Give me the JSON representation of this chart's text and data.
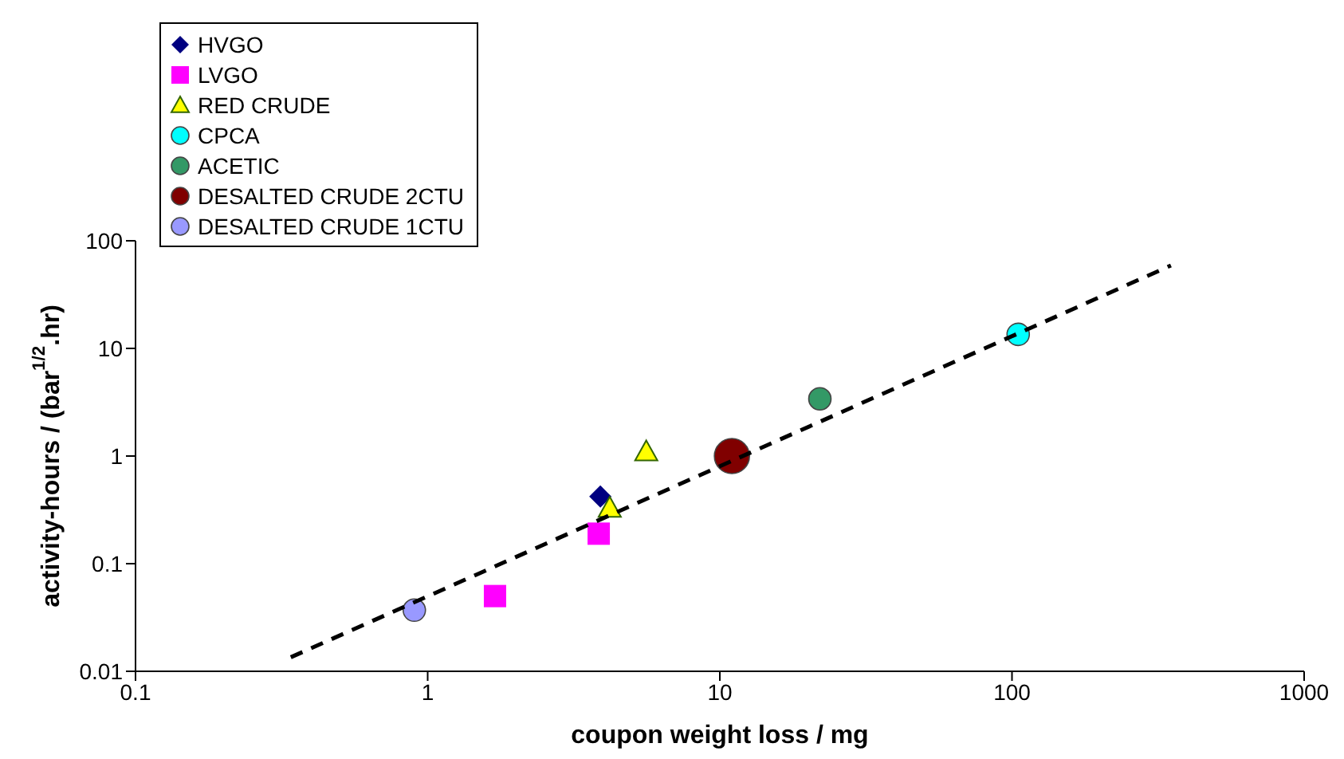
{
  "chart_data": {
    "type": "scatter",
    "xlabel": "coupon weight loss / mg",
    "ylabel": "activity-hours / (bar$^{1/2}$.hr)",
    "log": "xy",
    "xlim": [
      0.1,
      1000
    ],
    "xticks": [
      0.1,
      1,
      10,
      100,
      1000
    ],
    "ylim": [
      0.01,
      100
    ],
    "yticks": [
      0.01,
      0.1,
      1,
      10,
      100
    ],
    "grid": false,
    "legend": "top left",
    "series": [
      {
        "name": "HVGO",
        "color": "#000080",
        "marker": "diamond",
        "x": [
          3.9
        ],
        "values": [
          0.42
        ]
      },
      {
        "name": "LVGO",
        "color": "#ff00ff",
        "marker": "square",
        "x": [
          3.85,
          1.7
        ],
        "values": [
          0.19,
          0.05
        ]
      },
      {
        "name": "RED CRUDE",
        "color": "#ffff00",
        "marker": "triangle",
        "x": [
          5.6,
          4.2
        ],
        "values": [
          1.1,
          0.33
        ]
      },
      {
        "name": "CPCA",
        "color": "#00ffff",
        "marker": "circle",
        "x": [
          105
        ],
        "values": [
          13.5
        ]
      },
      {
        "name": "ACETIC",
        "color": "#339966",
        "marker": "circle",
        "x": [
          22
        ],
        "values": [
          3.4
        ]
      },
      {
        "name": "DESALTED CRUDE 2CTU",
        "color": "#800000",
        "marker": "circle",
        "x": [
          11
        ],
        "values": [
          1.0
        ]
      },
      {
        "name": "DESALTED CRUDE 1CTU",
        "color": "#9999ff",
        "marker": "circle",
        "x": [
          0.9
        ],
        "values": [
          0.037
        ]
      },
      {
        "type": "line",
        "color": "#000000",
        "line_style": "dashed",
        "marker": "none",
        "x": [
          0.34,
          350
        ],
        "values": [
          0.0135,
          59
        ]
      }
    ]
  }
}
